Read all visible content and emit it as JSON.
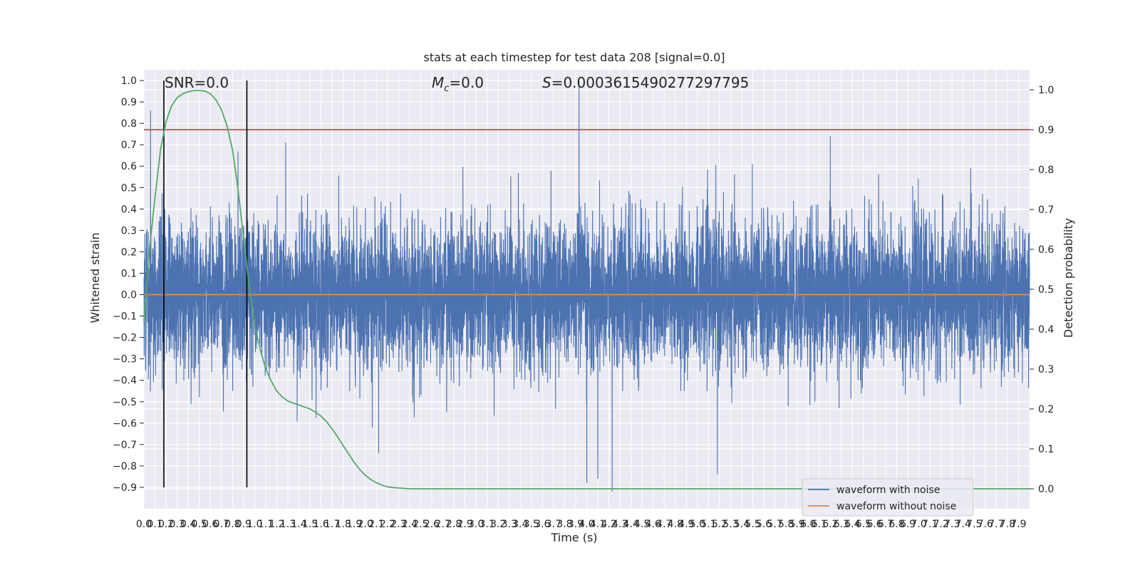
{
  "chart_data": {
    "type": "line",
    "title": "stats at each timestep for test data 208 [signal=0.0]",
    "xlabel": "Time (s)",
    "ylabel": "Whitened strain",
    "ylabel_right": "Detection probability",
    "xlim": [
      0.0,
      8.0
    ],
    "ylim": [
      -1.0,
      1.05
    ],
    "ylim_right": [
      -0.05,
      1.05
    ],
    "x_ticks": [
      0.0,
      0.1,
      0.2,
      0.3,
      0.4,
      0.5,
      0.6,
      0.7,
      0.8,
      0.9,
      1.0,
      1.1,
      1.2,
      1.3,
      1.4,
      1.5,
      1.6,
      1.7,
      1.8,
      1.9,
      2.0,
      2.1,
      2.2,
      2.3,
      2.4,
      2.5,
      2.6,
      2.7,
      2.8,
      2.9,
      3.0,
      3.1,
      3.2,
      3.3,
      3.4,
      3.5,
      3.6,
      3.7,
      3.8,
      3.9,
      4.0,
      4.1,
      4.2,
      4.3,
      4.4,
      4.5,
      4.6,
      4.7,
      4.8,
      4.9,
      5.0,
      5.1,
      5.2,
      5.3,
      5.4,
      5.5,
      5.6,
      5.7,
      5.8,
      5.9,
      6.0,
      6.1,
      6.2,
      6.3,
      6.4,
      6.5,
      6.6,
      6.7,
      6.8,
      6.9,
      7.0,
      7.1,
      7.2,
      7.3,
      7.4,
      7.5,
      7.6,
      7.7,
      7.8,
      7.9
    ],
    "y_ticks": [
      -0.9,
      -0.8,
      -0.7,
      -0.6,
      -0.5,
      -0.4,
      -0.3,
      -0.2,
      -0.1,
      0.0,
      0.1,
      0.2,
      0.3,
      0.4,
      0.5,
      0.6,
      0.7,
      0.8,
      0.9,
      1.0
    ],
    "y_ticks_right": [
      0.0,
      0.1,
      0.2,
      0.3,
      0.4,
      0.5,
      0.6,
      0.7,
      0.8,
      0.9,
      1.0
    ],
    "grid": true,
    "annotations": {
      "snr": "SNR=0.0",
      "mc_symbol": "M",
      "mc_sub": "c",
      "mc_value": "=0.0",
      "s_symbol": "S",
      "s_value": "=0.0003615490277297795"
    },
    "vertical_lines_x": [
      0.18,
      0.93
    ],
    "threshold_right": 0.9,
    "series": [
      {
        "name": "waveform with noise",
        "color": "#4c72b0",
        "noise_std": 0.17,
        "spikes": [
          {
            "x": 0.06,
            "y": 0.86
          },
          {
            "x": 0.85,
            "y": 0.67
          },
          {
            "x": 1.28,
            "y": 0.71
          },
          {
            "x": 3.93,
            "y": 1.0
          },
          {
            "x": 4.0,
            "y": -0.88
          },
          {
            "x": 4.1,
            "y": -0.86
          },
          {
            "x": 4.23,
            "y": -0.92
          },
          {
            "x": 5.18,
            "y": -0.84
          },
          {
            "x": 6.2,
            "y": 0.74
          },
          {
            "x": 2.12,
            "y": -0.74
          }
        ]
      },
      {
        "name": "waveform without noise",
        "color": "#dd8452",
        "constant": 0.0
      },
      {
        "name": "",
        "color": "#55a868",
        "axis": "right",
        "x": [
          0.0,
          0.05,
          0.1,
          0.15,
          0.2,
          0.25,
          0.3,
          0.35,
          0.4,
          0.45,
          0.5,
          0.55,
          0.6,
          0.65,
          0.7,
          0.75,
          0.8,
          0.85,
          0.9,
          0.95,
          1.0,
          1.05,
          1.1,
          1.15,
          1.2,
          1.25,
          1.3,
          1.35,
          1.4,
          1.45,
          1.5,
          1.55,
          1.6,
          1.65,
          1.7,
          1.75,
          1.8,
          1.85,
          1.9,
          1.95,
          2.0,
          2.05,
          2.1,
          2.15,
          2.2,
          2.25,
          2.3,
          2.35,
          2.4,
          2.45,
          2.5,
          2.6,
          2.8,
          3.0,
          4.0,
          6.0,
          8.0
        ],
        "values": [
          0.42,
          0.6,
          0.73,
          0.85,
          0.92,
          0.96,
          0.98,
          0.99,
          0.995,
          0.998,
          0.998,
          0.997,
          0.99,
          0.975,
          0.95,
          0.91,
          0.85,
          0.75,
          0.63,
          0.51,
          0.41,
          0.35,
          0.3,
          0.27,
          0.245,
          0.23,
          0.22,
          0.215,
          0.21,
          0.205,
          0.2,
          0.192,
          0.182,
          0.168,
          0.15,
          0.13,
          0.108,
          0.087,
          0.066,
          0.048,
          0.034,
          0.023,
          0.015,
          0.009,
          0.005,
          0.003,
          0.002,
          0.001,
          0.0,
          0.0,
          0.0,
          0.0,
          0.0,
          0.0,
          0.0,
          0.0,
          0.0
        ]
      }
    ],
    "legend": {
      "placement": "bottom-right",
      "entries": [
        "waveform with noise",
        "waveform without noise"
      ]
    },
    "colors": {
      "plot_bg": "#eaeaf2",
      "grid": "#ffffff",
      "threshold": "#c44e52",
      "vline": "#000000",
      "text": "#262626"
    }
  }
}
